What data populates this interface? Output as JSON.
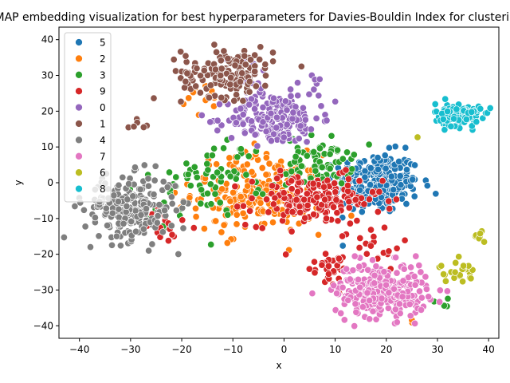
{
  "chart_data": {
    "type": "scatter",
    "title": "UMAP embedding visualization for best hyperparameters for Davies-Bouldin Index for clustering",
    "xlabel": "x",
    "ylabel": "y",
    "xlim": [
      -44,
      42
    ],
    "ylim": [
      -43.5,
      43.5
    ],
    "xticks": [
      -40,
      -30,
      -20,
      -10,
      0,
      10,
      20,
      30,
      40
    ],
    "yticks": [
      -40,
      -30,
      -20,
      -10,
      0,
      10,
      20,
      30,
      40
    ],
    "grid": false,
    "legend_position": "upper-left",
    "legend_order": [
      "5",
      "2",
      "3",
      "9",
      "0",
      "1",
      "4",
      "7",
      "6",
      "8"
    ],
    "series": [
      {
        "name": "5",
        "color": "#1f77b4",
        "clusters": [
          {
            "cx": 18,
            "cy": 0,
            "sx": 4.2,
            "sy": 4.2,
            "n": 260
          }
        ]
      },
      {
        "name": "2",
        "color": "#ff7f0e",
        "clusters": [
          {
            "cx": -5,
            "cy": -3,
            "sx": 6.5,
            "sy": 5.5,
            "n": 230
          },
          {
            "cx": -16,
            "cy": 24,
            "sx": 2.5,
            "sy": 3,
            "n": 14
          },
          {
            "cx": 25,
            "cy": -39,
            "sx": 0.5,
            "sy": 0.5,
            "n": 2
          }
        ]
      },
      {
        "name": "3",
        "color": "#2ca02c",
        "clusters": [
          {
            "cx": 7,
            "cy": 6,
            "sx": 3.2,
            "sy": 3.5,
            "n": 70
          },
          {
            "cx": -12,
            "cy": 2,
            "sx": 4.5,
            "sy": 5,
            "n": 55
          },
          {
            "cx": -23,
            "cy": -5,
            "sx": 3,
            "sy": 5,
            "n": 20
          },
          {
            "cx": 31,
            "cy": -33,
            "sx": 0.8,
            "sy": 0.8,
            "n": 4
          }
        ]
      },
      {
        "name": "9",
        "color": "#d62728",
        "clusters": [
          {
            "cx": 6,
            "cy": -5,
            "sx": 6.5,
            "sy": 3.5,
            "n": 170
          },
          {
            "cx": 8,
            "cy": -23,
            "sx": 3,
            "sy": 3,
            "n": 30
          },
          {
            "cx": 17,
            "cy": -18,
            "sx": 3,
            "sy": 3,
            "n": 20
          },
          {
            "cx": -22,
            "cy": -12,
            "sx": 2.5,
            "sy": 4,
            "n": 15
          }
        ]
      },
      {
        "name": "0",
        "color": "#9467bd",
        "clusters": [
          {
            "cx": -2,
            "cy": 18,
            "sx": 4.5,
            "sy": 3.5,
            "n": 190
          },
          {
            "cx": -8,
            "cy": 30,
            "sx": 3,
            "sy": 3,
            "n": 15
          },
          {
            "cx": 6,
            "cy": 24,
            "sx": 3,
            "sy": 3,
            "n": 15
          }
        ]
      },
      {
        "name": "1",
        "color": "#8c564b",
        "clusters": [
          {
            "cx": -11,
            "cy": 31,
            "sx": 4.5,
            "sy": 3.5,
            "n": 160
          },
          {
            "cx": -28.5,
            "cy": 15.5,
            "sx": 1,
            "sy": 1,
            "n": 6
          }
        ]
      },
      {
        "name": "4",
        "color": "#7f7f7f",
        "clusters": [
          {
            "cx": -30,
            "cy": -7,
            "sx": 4.5,
            "sy": 4.5,
            "n": 230
          }
        ]
      },
      {
        "name": "7",
        "color": "#e377c2",
        "clusters": [
          {
            "cx": 19,
            "cy": -30,
            "sx": 4.5,
            "sy": 3.8,
            "n": 270
          }
        ]
      },
      {
        "name": "6",
        "color": "#bcbd22",
        "clusters": [
          {
            "cx": 34,
            "cy": -25,
            "sx": 1.8,
            "sy": 1.5,
            "n": 22
          },
          {
            "cx": 38,
            "cy": -15,
            "sx": 0.8,
            "sy": 0.9,
            "n": 8
          },
          {
            "cx": 26,
            "cy": 13,
            "sx": 0.2,
            "sy": 0.2,
            "n": 1
          }
        ]
      },
      {
        "name": "8",
        "color": "#17becf",
        "clusters": [
          {
            "cx": 34,
            "cy": 19,
            "sx": 2.2,
            "sy": 1.6,
            "n": 150
          }
        ]
      }
    ]
  }
}
